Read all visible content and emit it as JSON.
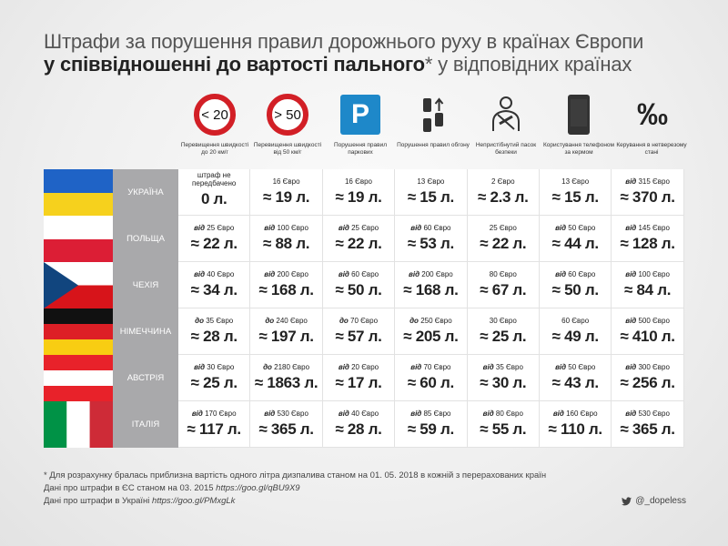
{
  "title": {
    "line1": "Штрафи за порушення правил дорожнього руху в країнах Європи",
    "line2_bold": "у співвідношенні до вартості пального",
    "line2_rest": "* у відповідних країнах"
  },
  "columns": [
    {
      "icon": "speed-limit-sign-icon",
      "sign": "< 20",
      "caption": "Перевищення швидкості до 20 км/г"
    },
    {
      "icon": "speed-limit-sign-icon",
      "sign": "> 50",
      "caption": "Перевищення швидкості від 50 км/г"
    },
    {
      "icon": "parking-sign-icon",
      "sign": "P",
      "caption": "Порушення правил паркових"
    },
    {
      "icon": "overtaking-icon",
      "sign": "",
      "caption": "Порушення правил обгону"
    },
    {
      "icon": "seatbelt-icon",
      "sign": "",
      "caption": "Непристібнутий пасок безпеки"
    },
    {
      "icon": "phone-icon",
      "sign": "",
      "caption": "Користування телефоном за кермом"
    },
    {
      "icon": "permille-icon",
      "sign": "‰",
      "caption": "Керування в нетверезому стані"
    }
  ],
  "rows": [
    {
      "country": "УКРАЇНА",
      "flag": "ukraine",
      "cells": [
        {
          "prefix": "",
          "euro": "штраф не передбачено",
          "liters": "0 л."
        },
        {
          "prefix": "",
          "euro": "16 Євро",
          "liters": "≈ 19 л."
        },
        {
          "prefix": "",
          "euro": "16 Євро",
          "liters": "≈ 19 л."
        },
        {
          "prefix": "",
          "euro": "13 Євро",
          "liters": "≈ 15 л."
        },
        {
          "prefix": "",
          "euro": "2 Євро",
          "liters": "≈ 2.3 л."
        },
        {
          "prefix": "",
          "euro": "13 Євро",
          "liters": "≈ 15 л."
        },
        {
          "prefix": "від",
          "euro": "315 Євро",
          "liters": "≈ 370 л."
        }
      ]
    },
    {
      "country": "ПОЛЬЩА",
      "flag": "poland",
      "cells": [
        {
          "prefix": "від",
          "euro": "25 Євро",
          "liters": "≈ 22 л."
        },
        {
          "prefix": "від",
          "euro": "100 Євро",
          "liters": "≈ 88 л."
        },
        {
          "prefix": "від",
          "euro": "25 Євро",
          "liters": "≈ 22 л."
        },
        {
          "prefix": "від",
          "euro": "60 Євро",
          "liters": "≈ 53 л."
        },
        {
          "prefix": "",
          "euro": "25 Євро",
          "liters": "≈ 22 л."
        },
        {
          "prefix": "від",
          "euro": "50 Євро",
          "liters": "≈ 44 л."
        },
        {
          "prefix": "від",
          "euro": "145 Євро",
          "liters": "≈ 128 л."
        }
      ]
    },
    {
      "country": "ЧЕХІЯ",
      "flag": "czech",
      "cells": [
        {
          "prefix": "від",
          "euro": "40 Євро",
          "liters": "≈ 34 л."
        },
        {
          "prefix": "від",
          "euro": "200 Євро",
          "liters": "≈ 168 л."
        },
        {
          "prefix": "від",
          "euro": "60 Євро",
          "liters": "≈ 50 л."
        },
        {
          "prefix": "від",
          "euro": "200 Євро",
          "liters": "≈ 168 л."
        },
        {
          "prefix": "",
          "euro": "80 Євро",
          "liters": "≈ 67 л."
        },
        {
          "prefix": "від",
          "euro": "60 Євро",
          "liters": "≈ 50 л."
        },
        {
          "prefix": "від",
          "euro": "100 Євро",
          "liters": "≈ 84 л."
        }
      ]
    },
    {
      "country": "НІМЕЧЧИНА",
      "flag": "germany",
      "cells": [
        {
          "prefix": "до",
          "euro": "35 Євро",
          "liters": "≈ 28 л."
        },
        {
          "prefix": "до",
          "euro": "240 Євро",
          "liters": "≈ 197 л."
        },
        {
          "prefix": "до",
          "euro": "70 Євро",
          "liters": "≈ 57 л."
        },
        {
          "prefix": "до",
          "euro": "250 Євро",
          "liters": "≈ 205 л."
        },
        {
          "prefix": "",
          "euro": "30 Євро",
          "liters": "≈ 25 л."
        },
        {
          "prefix": "",
          "euro": "60 Євро",
          "liters": "≈ 49 л."
        },
        {
          "prefix": "від",
          "euro": "500 Євро",
          "liters": "≈ 410 л."
        }
      ]
    },
    {
      "country": "АВСТРІЯ",
      "flag": "austria",
      "cells": [
        {
          "prefix": "від",
          "euro": "30 Євро",
          "liters": "≈ 25 л."
        },
        {
          "prefix": "до",
          "euro": "2180 Євро",
          "liters": "≈ 1863 л."
        },
        {
          "prefix": "від",
          "euro": "20 Євро",
          "liters": "≈ 17 л."
        },
        {
          "prefix": "від",
          "euro": "70 Євро",
          "liters": "≈ 60 л."
        },
        {
          "prefix": "від",
          "euro": "35 Євро",
          "liters": "≈ 30 л."
        },
        {
          "prefix": "від",
          "euro": "50 Євро",
          "liters": "≈ 43 л."
        },
        {
          "prefix": "від",
          "euro": "300 Євро",
          "liters": "≈ 256 л."
        }
      ]
    },
    {
      "country": "ІТАЛІЯ",
      "flag": "italy",
      "cells": [
        {
          "prefix": "від",
          "euro": "170 Євро",
          "liters": "≈ 117 л."
        },
        {
          "prefix": "від",
          "euro": "530 Євро",
          "liters": "≈ 365 л."
        },
        {
          "prefix": "від",
          "euro": "40 Євро",
          "liters": "≈ 28 л."
        },
        {
          "prefix": "від",
          "euro": "85 Євро",
          "liters": "≈ 59 л."
        },
        {
          "prefix": "від",
          "euro": "80 Євро",
          "liters": "≈ 55 л."
        },
        {
          "prefix": "від",
          "euro": "160 Євро",
          "liters": "≈ 110 л."
        },
        {
          "prefix": "від",
          "euro": "530 Євро",
          "liters": "≈ 365 л."
        }
      ]
    }
  ],
  "notes": {
    "line1": "* Для розрахунку бралась приблизна вартість одного літра дизпалива станом на 01. 05. 2018 в кожній з перерахованих країн",
    "line2_text": "Дані про штрафи в ЄС станом на 03. 2015 ",
    "line2_link": "https://goo.gl/qBU9X9",
    "line3_text": "Дані про штрафи в Україні ",
    "line3_link": "https://goo.gl/PMxgLk"
  },
  "twitter": {
    "icon": "twitter-bird-icon",
    "handle": "@_dopeless"
  },
  "colors": {
    "sign_red": "#d21f26",
    "parking_blue": "#1e88c9",
    "country_cell": "#a9a9ab"
  }
}
